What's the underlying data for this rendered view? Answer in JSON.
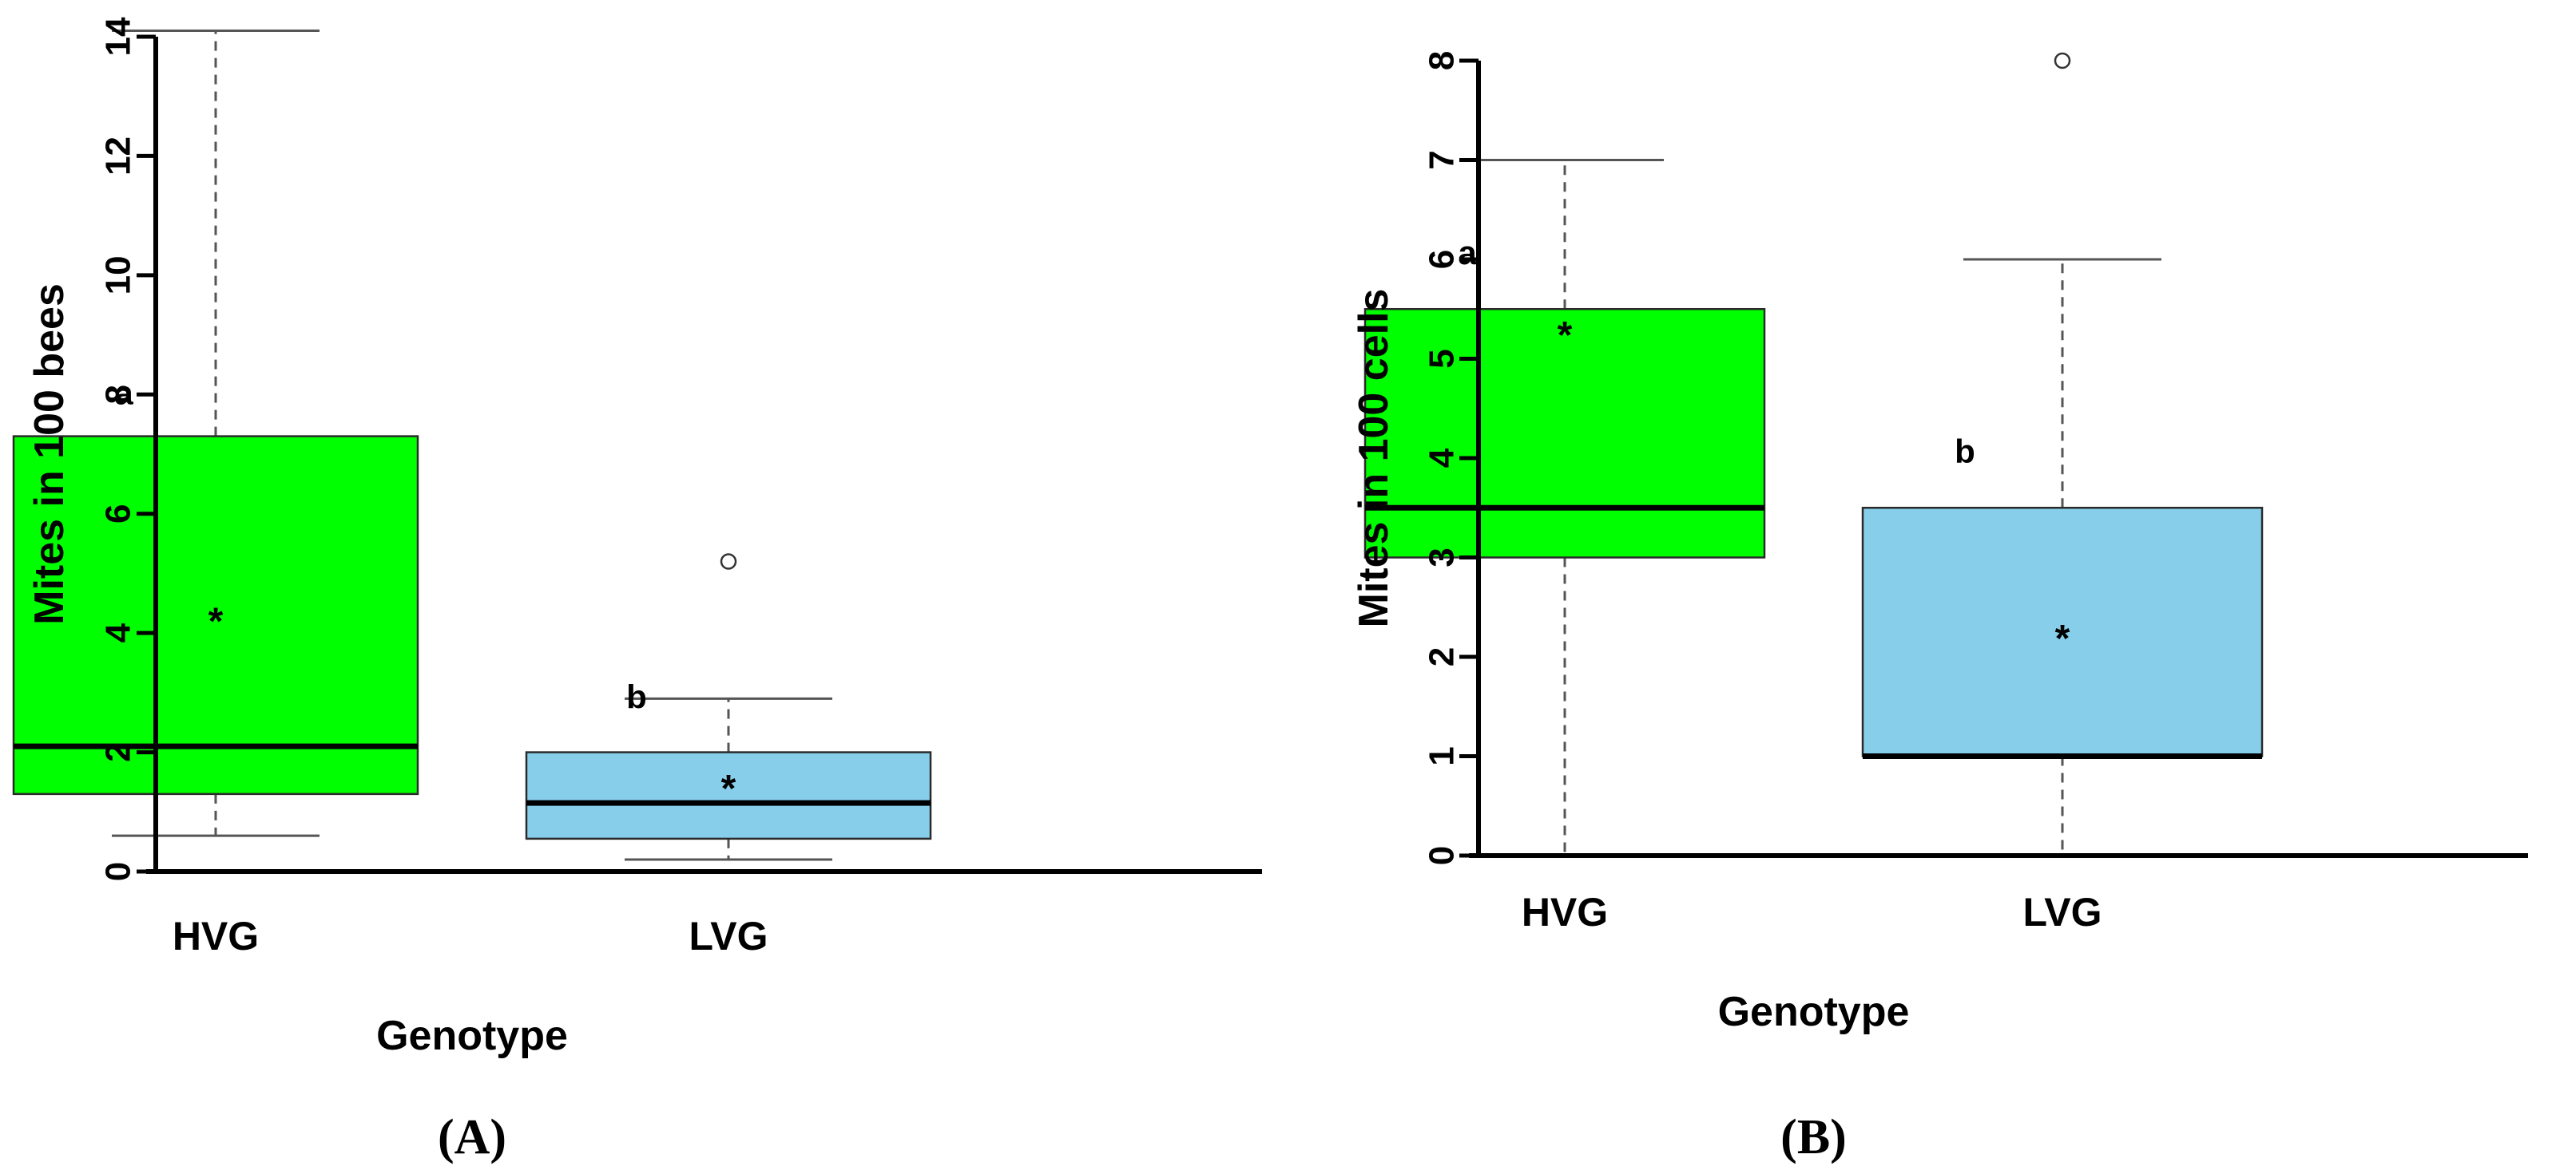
{
  "colors": {
    "hvg": "#00ff00",
    "lvg": "#87ceeb",
    "axis": "#000000",
    "whisker": "#555555"
  },
  "chart_data": [
    {
      "type": "box",
      "panel_label": "(A)",
      "xlabel": "Genotype",
      "ylabel": "Mites in 100 bees",
      "ylim": [
        0,
        14
      ],
      "yticks": [
        0,
        2,
        4,
        6,
        8,
        10,
        12,
        14
      ],
      "categories": [
        "HVG",
        "LVG"
      ],
      "boxes": [
        {
          "name": "HVG",
          "min": 0.6,
          "q1": 1.3,
          "median": 2.1,
          "q3": 7.3,
          "max": 14.1,
          "mean": 4.3,
          "outliers": [],
          "letter": "a",
          "letter_y": 8.0,
          "color": "#00ff00"
        },
        {
          "name": "LVG",
          "min": 0.2,
          "q1": 0.55,
          "median": 1.15,
          "q3": 2.0,
          "max": 2.9,
          "mean": 1.5,
          "outliers": [
            5.2
          ],
          "letter": "b",
          "letter_y": 2.9,
          "color": "#87ceeb"
        }
      ]
    },
    {
      "type": "box",
      "panel_label": "(B)",
      "xlabel": "Genotype",
      "ylabel": "Mites in 100 cells",
      "ylim": [
        0,
        8
      ],
      "yticks": [
        0,
        1,
        2,
        3,
        4,
        5,
        6,
        7,
        8
      ],
      "categories": [
        "HVG",
        "LVG"
      ],
      "boxes": [
        {
          "name": "HVG",
          "min": 0,
          "q1": 3.0,
          "median": 3.5,
          "q3": 5.5,
          "max": 7.0,
          "mean": 5.3,
          "outliers": [],
          "letter": "a",
          "letter_y": 6.0,
          "color": "#00ff00"
        },
        {
          "name": "LVG",
          "min": 0,
          "q1": 1.0,
          "median": 1.0,
          "q3": 3.5,
          "max": 6.0,
          "mean": 2.25,
          "outliers": [
            8.0
          ],
          "letter": "b",
          "letter_y": 4.0,
          "color": "#87ceeb"
        }
      ]
    }
  ]
}
